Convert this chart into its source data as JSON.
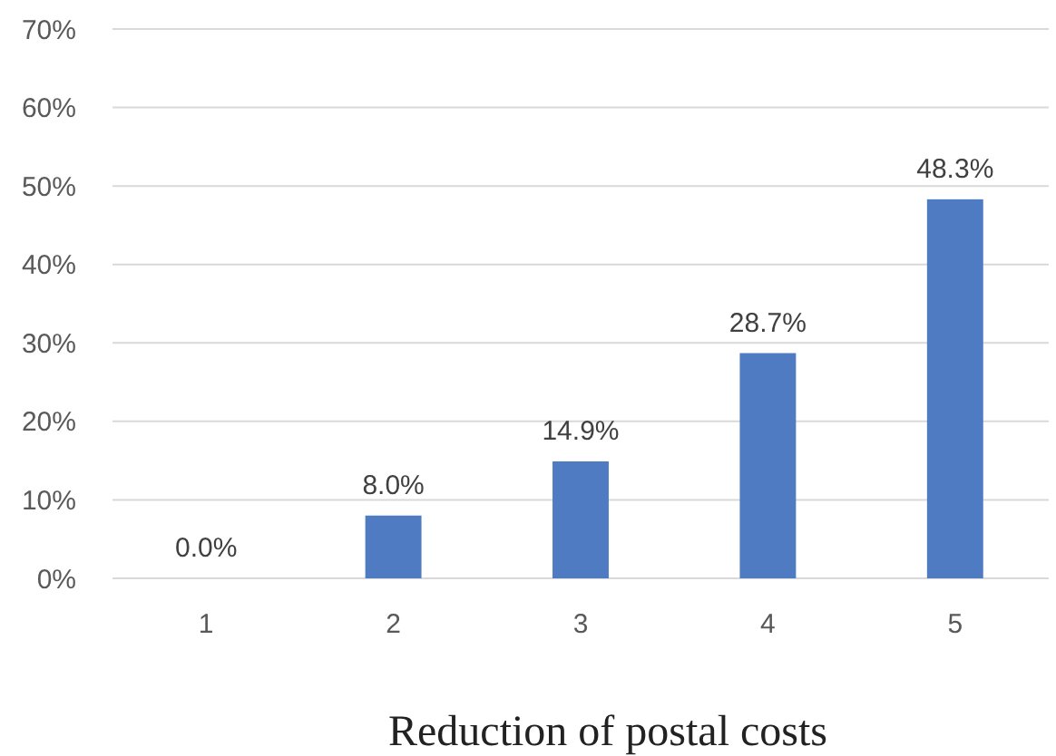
{
  "chart_data": {
    "type": "bar",
    "xlabel": "Reduction of postal costs",
    "categories": [
      "1",
      "2",
      "3",
      "4",
      "5"
    ],
    "values": [
      0.0,
      8.0,
      14.9,
      28.7,
      48.3
    ],
    "value_labels": [
      "0.0%",
      "8.0%",
      "14.9%",
      "28.7%",
      "48.3%"
    ],
    "color": "#4f7bc3",
    "ylim": [
      0,
      70
    ],
    "yticks": [
      {
        "value": 0,
        "label": "0%"
      },
      {
        "value": 10,
        "label": "10%"
      },
      {
        "value": 20,
        "label": "20%"
      },
      {
        "value": 30,
        "label": "30%"
      },
      {
        "value": 40,
        "label": "40%"
      },
      {
        "value": 50,
        "label": "50%"
      },
      {
        "value": 60,
        "label": "60%"
      },
      {
        "value": 70,
        "label": "70%"
      }
    ],
    "grid": "y"
  }
}
